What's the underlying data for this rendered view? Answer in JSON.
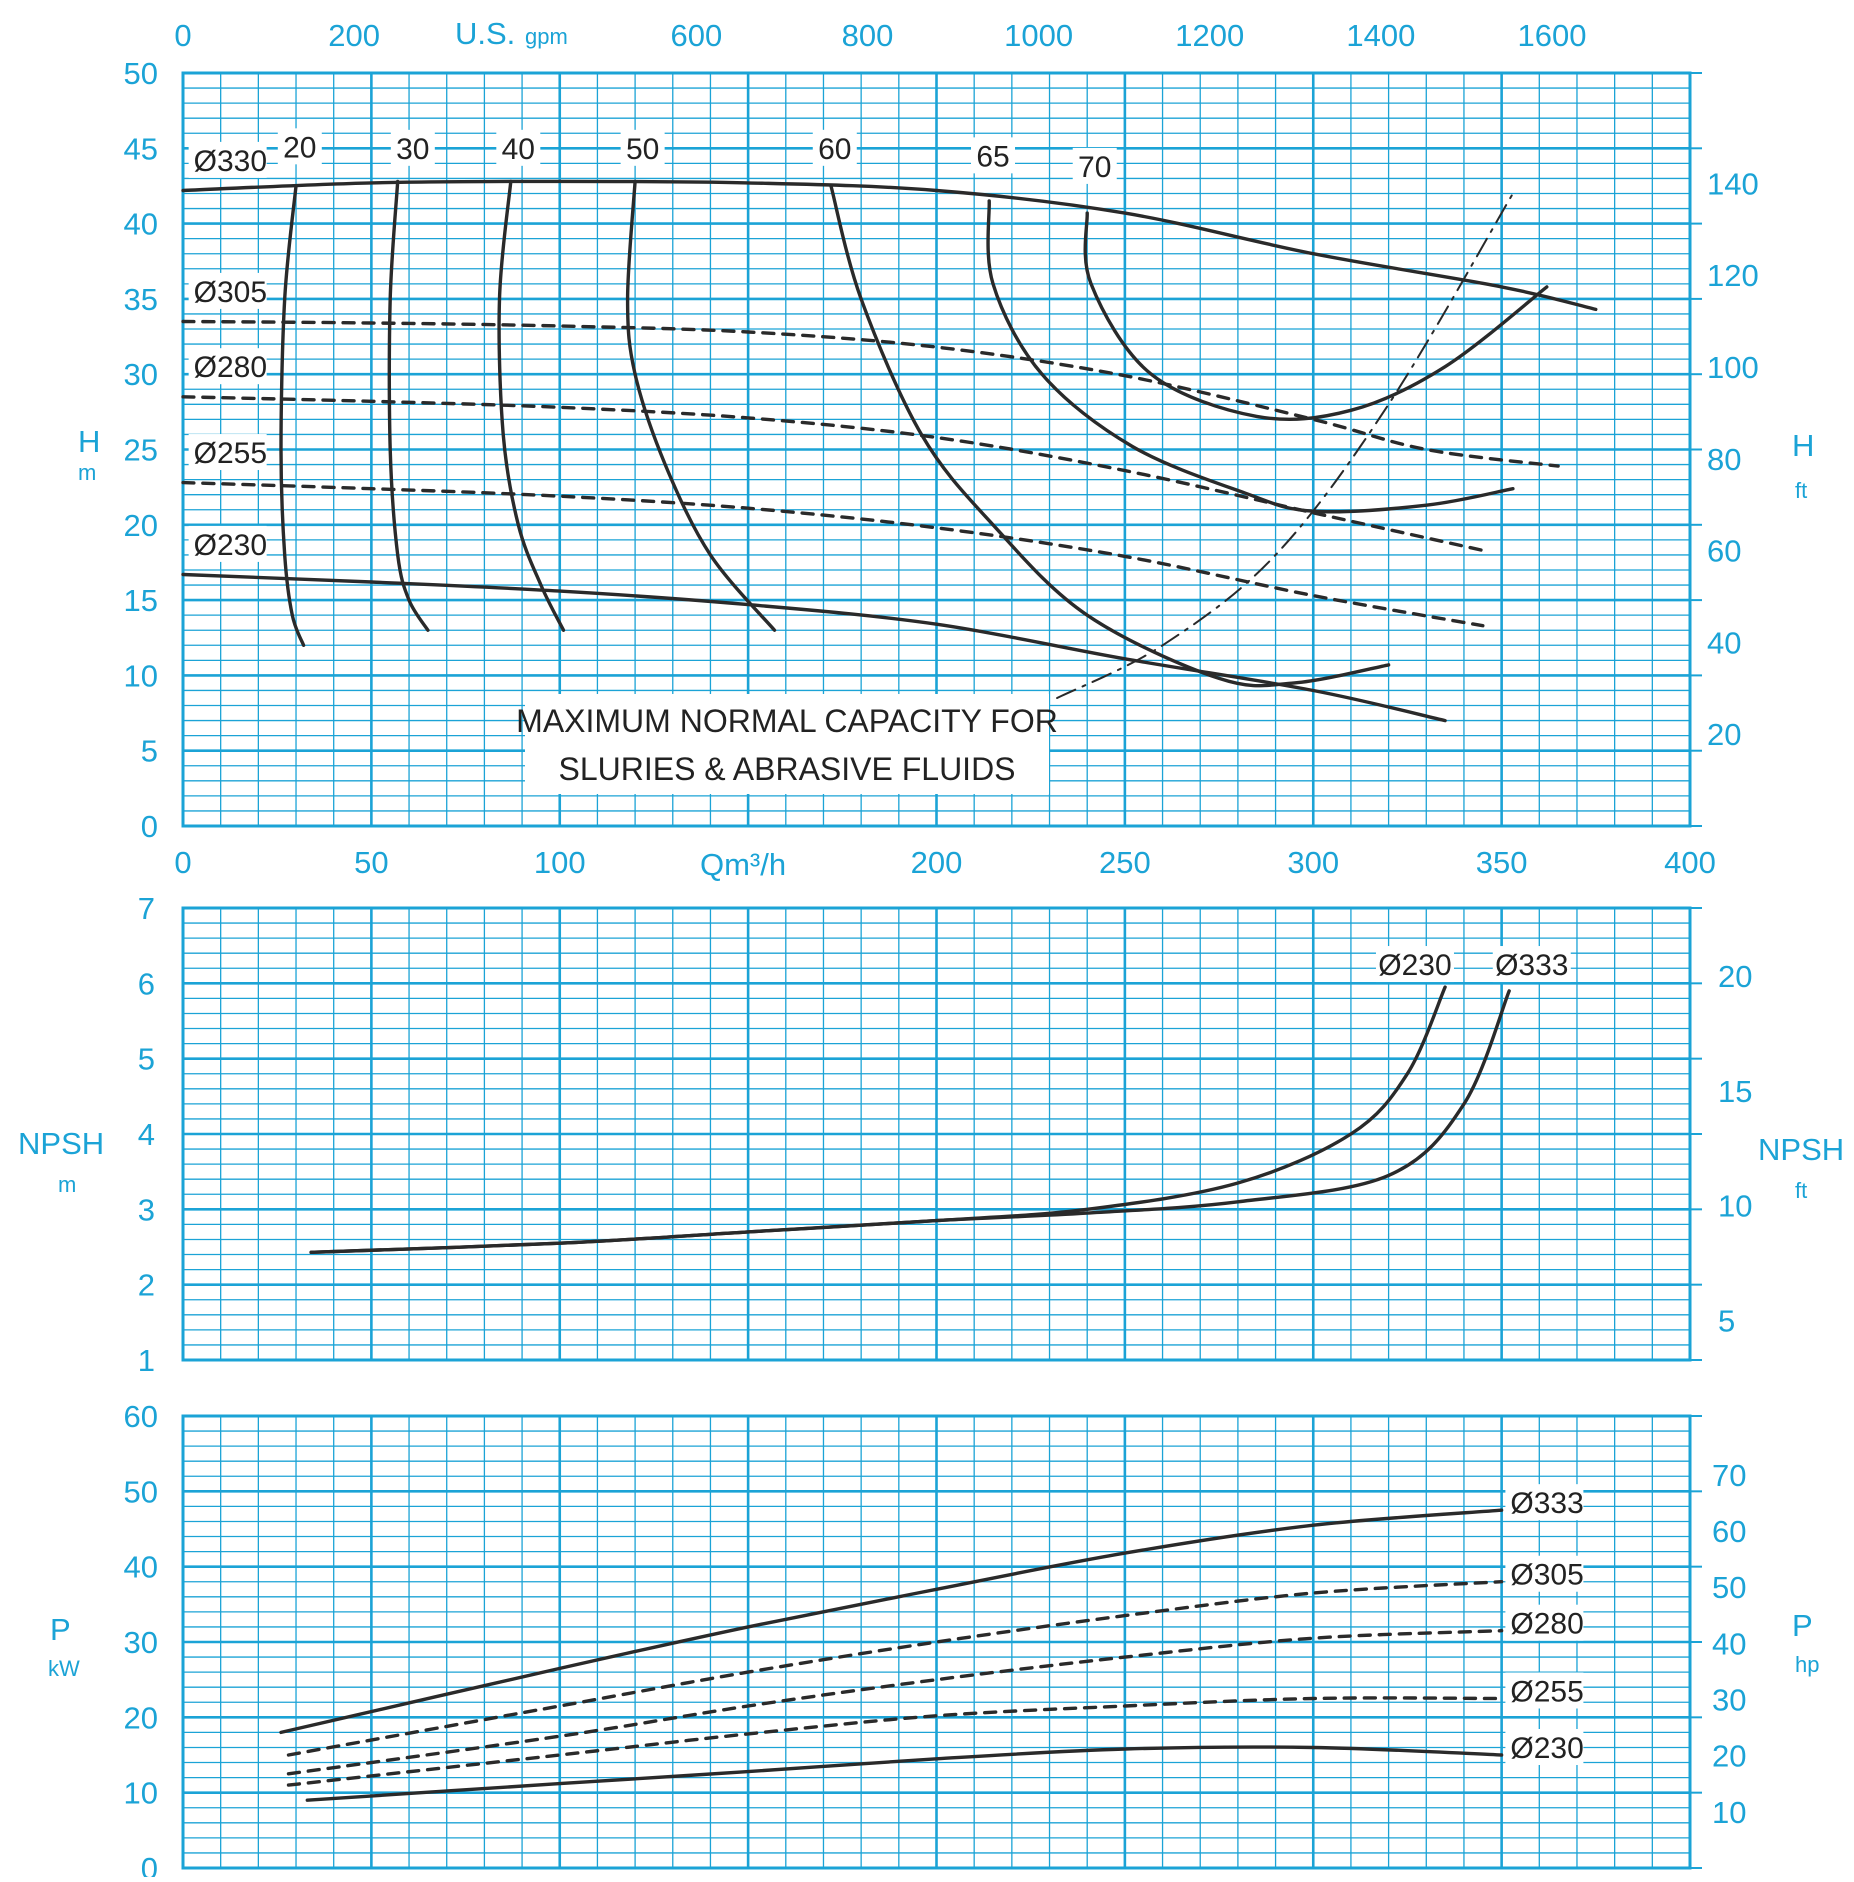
{
  "colors": {
    "grid": "#1ba3d6",
    "axis_text": "#1ba3d6",
    "curve": "#2a2a2a",
    "background": "#ffffff"
  },
  "axes": {
    "top_axis_label": "U.S.",
    "top_axis_unit": "gpm",
    "top_ticks": [
      "0",
      "200",
      "600",
      "800",
      "1000",
      "1200",
      "1400",
      "1600"
    ],
    "q_axis_label": "Qm³/h",
    "q_ticks": [
      "0",
      "50",
      "100",
      "200",
      "250",
      "300",
      "350",
      "400"
    ],
    "h_label": "H",
    "h_unit": "m",
    "h_ft_label": "H",
    "h_ft_unit": "ft",
    "h_ticks": [
      "0",
      "5",
      "10",
      "15",
      "20",
      "25",
      "30",
      "35",
      "40",
      "45",
      "50"
    ],
    "h_ft_ticks": [
      "20",
      "40",
      "60",
      "80",
      "100",
      "120",
      "140"
    ],
    "npsh_label": "NPSH",
    "npsh_unit": "m",
    "npsh_ft_label": "NPSH",
    "npsh_ft_unit": "ft",
    "npsh_ticks": [
      "1",
      "2",
      "3",
      "4",
      "5",
      "6",
      "7"
    ],
    "npsh_ft_ticks": [
      "5",
      "10",
      "15",
      "20"
    ],
    "p_label": "P",
    "p_unit": "kW",
    "p_hp_label": "P",
    "p_hp_unit": "hp",
    "p_ticks": [
      "0",
      "10",
      "20",
      "30",
      "40",
      "50",
      "60"
    ],
    "p_hp_ticks": [
      "10",
      "20",
      "30",
      "40",
      "50",
      "60",
      "70"
    ]
  },
  "annotation": {
    "line1": "MAXIMUM NORMAL CAPACITY FOR",
    "line2": "SLURIES & ABRASIVE FLUIDS"
  },
  "chart_data": [
    {
      "type": "line",
      "panel": "head",
      "xlabel": "Qm³/h",
      "ylabel": "H m",
      "xlim": [
        0,
        400
      ],
      "ylim": [
        0,
        50
      ],
      "grid": true,
      "series": [
        {
          "name": "Ø330",
          "style": "solid",
          "x": [
            0,
            50,
            100,
            150,
            200,
            250,
            300,
            350,
            375
          ],
          "y": [
            42.2,
            42.7,
            42.8,
            42.7,
            42.2,
            40.7,
            38.0,
            35.8,
            34.3
          ]
        },
        {
          "name": "Ø305",
          "style": "dashed",
          "x": [
            0,
            50,
            100,
            150,
            200,
            250,
            300,
            330,
            365
          ],
          "y": [
            33.5,
            33.4,
            33.2,
            32.8,
            31.8,
            29.9,
            27.0,
            25.0,
            23.9
          ]
        },
        {
          "name": "Ø280",
          "style": "dashed",
          "x": [
            0,
            50,
            100,
            150,
            200,
            250,
            300,
            345
          ],
          "y": [
            28.5,
            28.2,
            27.8,
            27.1,
            25.8,
            23.6,
            20.8,
            18.3
          ]
        },
        {
          "name": "Ø255",
          "style": "dashed",
          "x": [
            0,
            50,
            100,
            150,
            200,
            250,
            300,
            345
          ],
          "y": [
            22.8,
            22.4,
            21.9,
            21.1,
            19.8,
            17.9,
            15.3,
            13.3
          ]
        },
        {
          "name": "Ø230",
          "style": "solid",
          "x": [
            0,
            50,
            100,
            150,
            200,
            250,
            300,
            335
          ],
          "y": [
            16.7,
            16.2,
            15.6,
            14.7,
            13.4,
            11.1,
            9.0,
            7.0
          ]
        }
      ],
      "efficiency_curves": [
        {
          "name": "20",
          "x": [
            30,
            27,
            26,
            27,
            29,
            32
          ],
          "y": [
            42.5,
            35,
            25,
            18,
            14,
            12
          ]
        },
        {
          "name": "30",
          "x": [
            57,
            55,
            55,
            57,
            60,
            65
          ],
          "y": [
            42.8,
            35,
            25,
            18,
            15,
            13
          ]
        },
        {
          "name": "40",
          "x": [
            87,
            84,
            85,
            89,
            95,
            101
          ],
          "y": [
            42.8,
            35,
            26,
            20,
            16,
            13
          ]
        },
        {
          "name": "50",
          "x": [
            120,
            118,
            120,
            128,
            140,
            157
          ],
          "y": [
            42.8,
            35,
            30,
            24,
            18,
            13
          ]
        },
        {
          "name": "60",
          "x": [
            172,
            180,
            196,
            215,
            240,
            275,
            295,
            320
          ],
          "y": [
            42.5,
            35,
            26,
            20,
            14,
            9.8,
            9.5,
            10.7
          ]
        },
        {
          "name": "65",
          "x": [
            214,
            215,
            228,
            252,
            282,
            300,
            330,
            353
          ],
          "y": [
            41.5,
            36,
            30,
            25.2,
            22.1,
            20.9,
            21.3,
            22.4
          ]
        },
        {
          "name": "70",
          "x": [
            240,
            241,
            257,
            285,
            310,
            335,
            362
          ],
          "y": [
            40.7,
            36,
            30,
            27.2,
            27.6,
            30.5,
            35.8
          ]
        }
      ],
      "limit_line": {
        "name": "MAXIMUM NORMAL CAPACITY FOR SLURIES & ABRASIVE FLUIDS",
        "x": [
          232,
          260,
          290,
          320,
          353
        ],
        "y": [
          8.5,
          12.0,
          18.0,
          28.0,
          42.0
        ]
      }
    },
    {
      "type": "line",
      "panel": "npsh",
      "xlabel": "Qm³/h",
      "ylabel": "NPSH m",
      "xlim": [
        0,
        400
      ],
      "ylim": [
        1,
        7
      ],
      "grid": true,
      "series": [
        {
          "name": "Ø230",
          "style": "solid",
          "x": [
            34,
            100,
            150,
            200,
            240,
            280,
            310,
            325,
            335
          ],
          "y": [
            2.43,
            2.55,
            2.7,
            2.85,
            3.0,
            3.35,
            4.0,
            4.8,
            5.95
          ]
        },
        {
          "name": "Ø333",
          "style": "solid",
          "x": [
            34,
            100,
            150,
            200,
            240,
            280,
            320,
            340,
            352
          ],
          "y": [
            2.43,
            2.55,
            2.7,
            2.85,
            2.95,
            3.1,
            3.45,
            4.4,
            5.9
          ]
        }
      ]
    },
    {
      "type": "line",
      "panel": "power",
      "xlabel": "Qm³/h",
      "ylabel": "P kW",
      "xlim": [
        0,
        400
      ],
      "ylim": [
        0,
        60
      ],
      "grid": true,
      "series": [
        {
          "name": "Ø333",
          "style": "solid",
          "x": [
            26,
            100,
            150,
            200,
            250,
            300,
            350
          ],
          "y": [
            18,
            26.5,
            32,
            37,
            41.8,
            45.5,
            47.5
          ]
        },
        {
          "name": "Ø305",
          "style": "dashed",
          "x": [
            28,
            100,
            150,
            200,
            250,
            300,
            350
          ],
          "y": [
            15,
            21.5,
            26,
            30,
            33.5,
            36.5,
            38
          ]
        },
        {
          "name": "Ø280",
          "style": "dashed",
          "x": [
            28,
            100,
            150,
            200,
            250,
            300,
            350
          ],
          "y": [
            12.5,
            17.5,
            21.5,
            25,
            28,
            30.5,
            31.5
          ]
        },
        {
          "name": "Ø255",
          "style": "dashed",
          "x": [
            28,
            100,
            150,
            200,
            250,
            300,
            350
          ],
          "y": [
            11,
            15,
            17.8,
            20.2,
            21.5,
            22.5,
            22.5
          ]
        },
        {
          "name": "Ø230",
          "style": "solid",
          "x": [
            33,
            100,
            150,
            200,
            250,
            300,
            350
          ],
          "y": [
            9,
            11.2,
            12.8,
            14.5,
            15.8,
            16,
            15
          ]
        }
      ]
    }
  ]
}
